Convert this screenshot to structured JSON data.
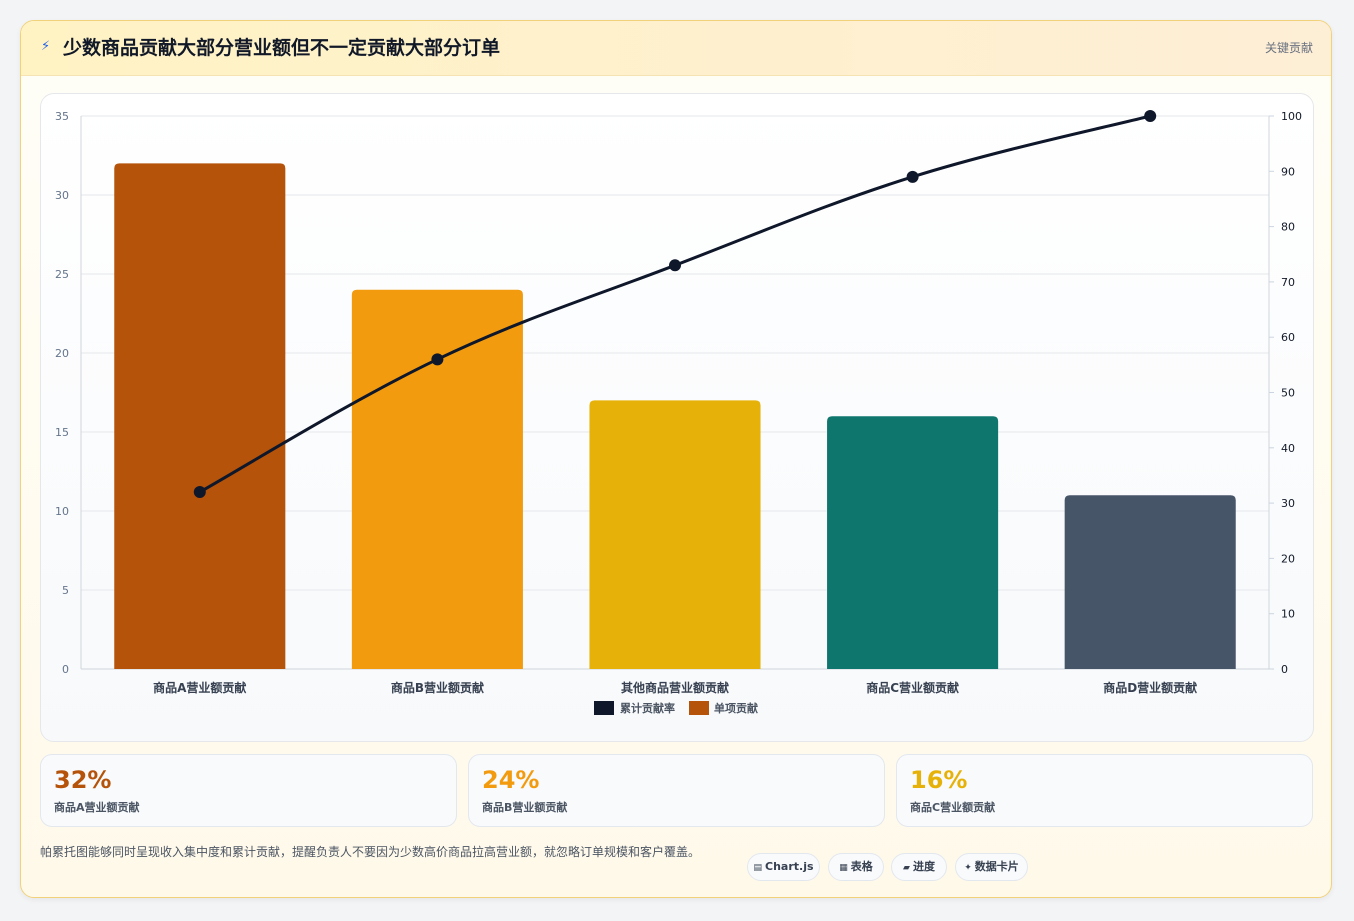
{
  "header": {
    "title": "少数商品贡献大部分营业额但不一定贡献大部分订单",
    "badge": "关键贡献",
    "icon": "lightning-icon"
  },
  "chart_data": {
    "type": "bar",
    "categories": [
      "商品A营业额贡献",
      "商品B营业额贡献",
      "其他商品营业额贡献",
      "商品C营业额贡献",
      "商品D营业额贡献"
    ],
    "series": [
      {
        "name": "单项贡献",
        "type": "bar",
        "axis": "left",
        "values": [
          32,
          24,
          17,
          16,
          11
        ],
        "colors": [
          "#b45309",
          "#f29b0e",
          "#e6b20a",
          "#0f766e",
          "#475569"
        ]
      },
      {
        "name": "累计贡献率",
        "type": "line",
        "axis": "right",
        "values": [
          32,
          56,
          73,
          89,
          100
        ],
        "color": "#0f172a"
      }
    ],
    "y_left": {
      "ylim": [
        0,
        35
      ],
      "ticks": [
        "0",
        "5",
        "10",
        "15",
        "20",
        "25",
        "30",
        "35"
      ]
    },
    "y_right": {
      "ylim": [
        0,
        100
      ],
      "ticks": [
        "0",
        "10",
        "20",
        "30",
        "40",
        "50",
        "60",
        "70",
        "80",
        "90",
        "100"
      ]
    },
    "grid": true,
    "legend": {
      "placement": "bottom",
      "entries": [
        {
          "label": "累计贡献率",
          "color": "#0f172a"
        },
        {
          "label": "单项贡献",
          "color": "#b45309"
        }
      ]
    }
  },
  "stats": [
    {
      "value": "32%",
      "label": "商品A营业额贡献",
      "color": "#b45309"
    },
    {
      "value": "24%",
      "label": "商品B营业额贡献",
      "color": "#f29b0e"
    },
    {
      "value": "16%",
      "label": "商品C营业额贡献",
      "color": "#e6b20a"
    }
  ],
  "footnote": "帕累托图能够同时呈现收入集中度和累计贡献，提醒负责人不要因为少数高价商品拉高营业额，就忽略订单规模和客户覆盖。",
  "tags": [
    {
      "label": "Chart.js",
      "icon": "chart-icon",
      "glyph": "▤"
    },
    {
      "label": "表格",
      "icon": "table-icon",
      "glyph": "▦"
    },
    {
      "label": "进度",
      "icon": "progress-icon",
      "glyph": "▰"
    },
    {
      "label": "数据卡片",
      "icon": "sparkle-icon",
      "glyph": "✦"
    }
  ]
}
